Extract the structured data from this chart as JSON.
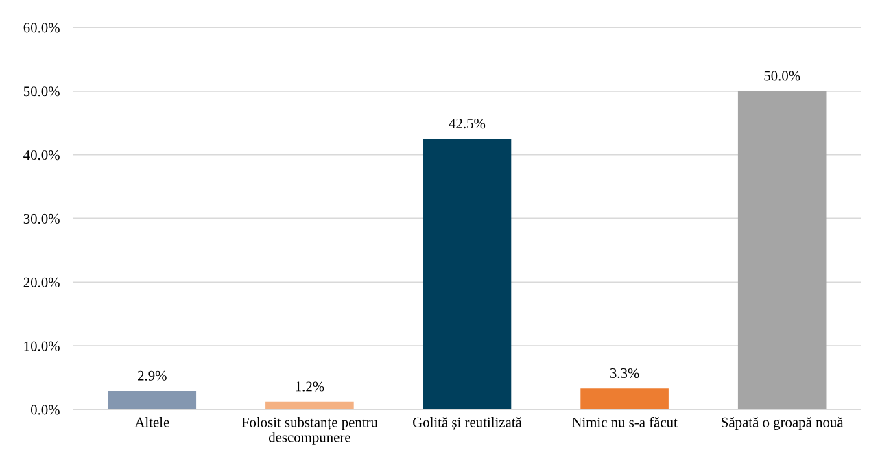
{
  "chart_data": {
    "type": "bar",
    "categories": [
      "Altele",
      "Folosit substanțe pentru descompunere",
      "Golită și reutilizată",
      "Nimic nu s-a făcut",
      "Săpată o groapă nouă"
    ],
    "values": [
      2.9,
      1.2,
      42.5,
      3.3,
      50.0
    ],
    "colors": [
      "#8497b0",
      "#f4b183",
      "#003f5c",
      "#ed7d31",
      "#a5a5a5"
    ],
    "ylim": [
      0,
      60
    ],
    "yticks": [
      {
        "value": 0,
        "label": "0.0%"
      },
      {
        "value": 10,
        "label": "10.0%"
      },
      {
        "value": 20,
        "label": "20.0%"
      },
      {
        "value": 30,
        "label": "30.0%"
      },
      {
        "value": 40,
        "label": "40.0%"
      },
      {
        "value": 50,
        "label": "50.0%"
      },
      {
        "value": 60,
        "label": "60.0%"
      }
    ],
    "value_labels": [
      "2.9%",
      "1.2%",
      "42.5%",
      "3.3%",
      "50.0%"
    ],
    "grid": "y",
    "legend": false
  }
}
